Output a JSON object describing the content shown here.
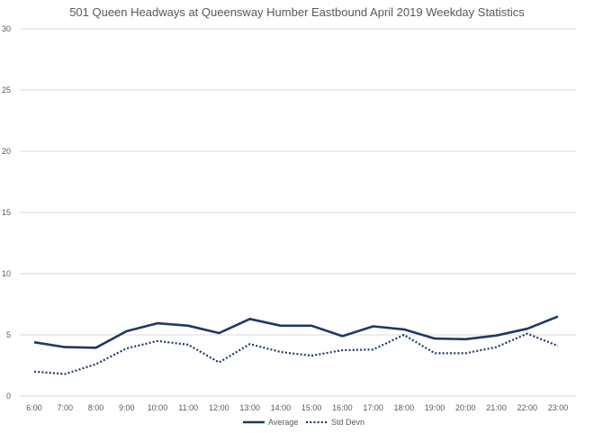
{
  "chart_data": {
    "type": "line",
    "title": "501 Queen Headways at Queensway Humber Eastbound April 2019 Weekday Statistics",
    "xlabel": "",
    "ylabel": "",
    "categories": [
      "6:00",
      "7:00",
      "8:00",
      "9:00",
      "10:00",
      "11:00",
      "12:00",
      "13:00",
      "14:00",
      "15:00",
      "16:00",
      "17:00",
      "18:00",
      "19:00",
      "20:00",
      "21:00",
      "22:00",
      "23:00"
    ],
    "ylim": [
      0,
      30
    ],
    "yticks": [
      "0",
      "5",
      "10",
      "15",
      "20",
      "25",
      "30"
    ],
    "grid": true,
    "legend_position": "bottom",
    "series": [
      {
        "name": "Average",
        "style": "solid",
        "color": "#1f3864",
        "values": [
          4.4,
          4.0,
          3.95,
          5.3,
          5.95,
          5.75,
          5.15,
          6.3,
          5.75,
          5.75,
          4.9,
          5.7,
          5.45,
          4.7,
          4.65,
          4.95,
          5.5,
          6.5
        ]
      },
      {
        "name": "Std Devn",
        "style": "dotted",
        "color": "#1f3864",
        "values": [
          2.0,
          1.8,
          2.6,
          3.9,
          4.5,
          4.2,
          2.75,
          4.25,
          3.6,
          3.3,
          3.75,
          3.8,
          5.0,
          3.5,
          3.5,
          4.0,
          5.1,
          4.1
        ]
      }
    ]
  }
}
